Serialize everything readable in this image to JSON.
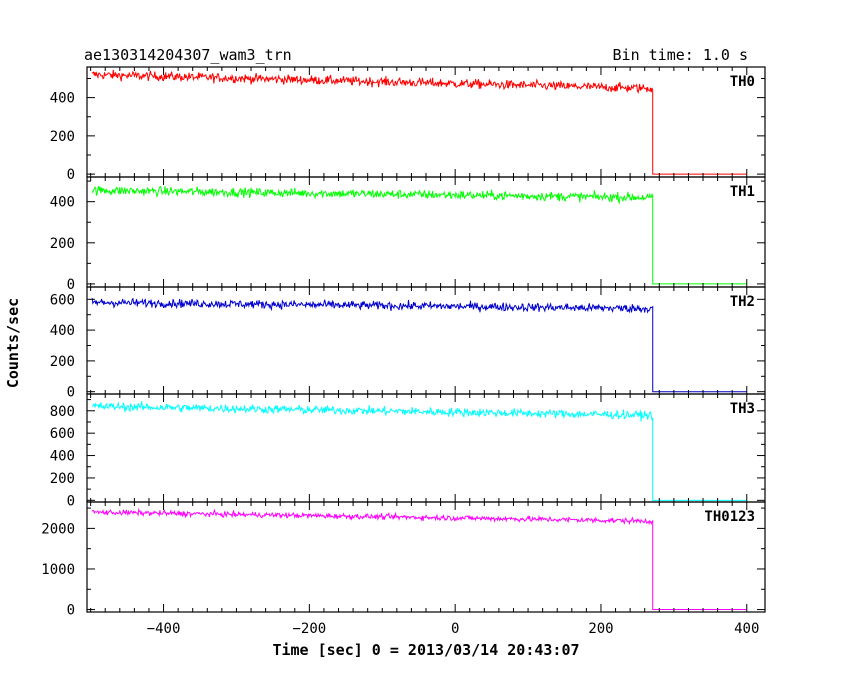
{
  "chart_data": {
    "type": "line",
    "title_left": "ae130314204307_wam3_trn",
    "title_right": "Bin time: 1.0 s",
    "xlabel": "Time [sec] 0 = 2013/03/14 20:43:07",
    "ylabel": "Counts/sec",
    "xlim": [
      -505,
      425
    ],
    "x_ticks": [
      -400,
      -200,
      0,
      200,
      400
    ],
    "drop_time": 271,
    "end_time": 400,
    "panels": [
      {
        "name": "TH0",
        "color": "#ff0000",
        "ylim": [
          -15,
          560
        ],
        "y_ticks": [
          0,
          200,
          400
        ],
        "start_level": 520,
        "end_level": 448,
        "noise": 22,
        "after_drop": 0
      },
      {
        "name": "TH1",
        "color": "#00ff00",
        "ylim": [
          -15,
          520
        ],
        "y_ticks": [
          0,
          200,
          400
        ],
        "start_level": 455,
        "end_level": 420,
        "noise": 20,
        "after_drop": 0
      },
      {
        "name": "TH2",
        "color": "#0000cc",
        "ylim": [
          -15,
          680
        ],
        "y_ticks": [
          0,
          200,
          400,
          600
        ],
        "start_level": 580,
        "end_level": 540,
        "noise": 25,
        "after_drop": 0
      },
      {
        "name": "TH3",
        "color": "#00ffff",
        "ylim": [
          -15,
          950
        ],
        "y_ticks": [
          0,
          200,
          400,
          600,
          800
        ],
        "start_level": 840,
        "end_level": 760,
        "noise": 35,
        "after_drop": 0
      },
      {
        "name": "TH0123",
        "color": "#ff00ff",
        "ylim": [
          -60,
          2650
        ],
        "y_ticks": [
          0,
          1000,
          2000
        ],
        "start_level": 2400,
        "end_level": 2180,
        "noise": 60,
        "after_drop": 0
      }
    ]
  }
}
